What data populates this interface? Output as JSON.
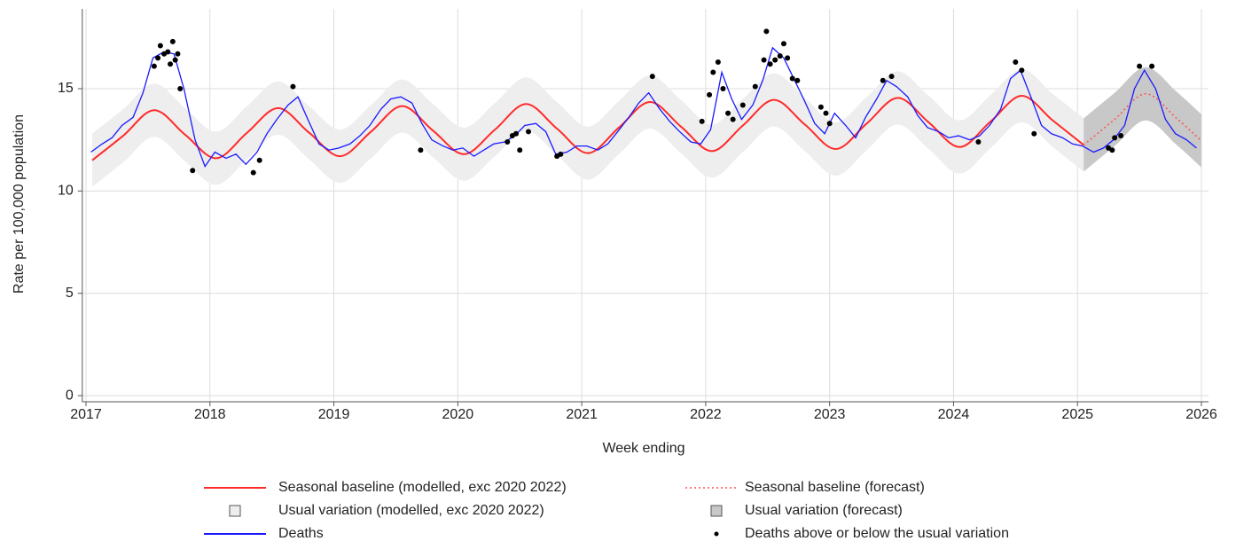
{
  "chart_data": {
    "type": "line",
    "x_label": "Week ending",
    "y_label": "Rate per 100,000 population",
    "xlim": [
      2016.97,
      2026.0
    ],
    "xticks": [
      2017,
      2018,
      2019,
      2020,
      2021,
      2022,
      2023,
      2024,
      2025,
      2026
    ],
    "ylim": [
      -0.3,
      18.9
    ],
    "yticks": [
      0,
      5,
      10,
      15
    ],
    "grid": true,
    "series": [
      {
        "name": "Seasonal baseline (modelled, exc 2020 2022)",
        "color": "#ff2a2a",
        "kind": "line",
        "x": [
          2017.05,
          2017.3,
          2017.55,
          2017.8,
          2018.05,
          2018.3,
          2018.55,
          2018.8,
          2019.05,
          2019.3,
          2019.55,
          2019.8,
          2020.05,
          2020.3,
          2020.55,
          2020.8,
          2021.05,
          2021.3,
          2021.55,
          2021.8,
          2022.05,
          2022.3,
          2022.55,
          2022.8,
          2023.05,
          2023.3,
          2023.55,
          2023.8,
          2024.05,
          2024.3,
          2024.55,
          2024.8,
          2025.05
        ],
        "values": [
          11.5,
          12.7,
          13.95,
          12.75,
          11.6,
          12.85,
          14.05,
          12.85,
          11.7,
          12.9,
          14.15,
          12.95,
          11.8,
          13.0,
          14.25,
          13.05,
          11.85,
          13.1,
          14.35,
          13.15,
          11.95,
          13.2,
          14.45,
          13.25,
          12.05,
          13.3,
          14.55,
          13.35,
          12.15,
          13.4,
          14.65,
          13.45,
          12.25
        ]
      },
      {
        "name": "Seasonal baseline (forecast)",
        "color": "#ff5050",
        "kind": "dotted",
        "x": [
          2025.05,
          2025.3,
          2025.55,
          2025.8,
          2026.0
        ],
        "values": [
          12.25,
          13.5,
          14.75,
          13.55,
          12.45
        ]
      },
      {
        "name": "Usual variation (modelled, exc 2020 2022)",
        "color": "#eeeeee",
        "kind": "band",
        "x": [
          2017.05,
          2017.3,
          2017.55,
          2017.8,
          2018.05,
          2018.3,
          2018.55,
          2018.8,
          2019.05,
          2019.3,
          2019.55,
          2019.8,
          2020.05,
          2020.3,
          2020.55,
          2020.8,
          2021.05,
          2021.3,
          2021.55,
          2021.8,
          2022.05,
          2022.3,
          2022.55,
          2022.8,
          2023.05,
          2023.3,
          2023.55,
          2023.8,
          2024.05,
          2024.3,
          2024.55,
          2024.8,
          2025.05
        ],
        "lower": [
          10.2,
          11.4,
          12.65,
          11.45,
          10.3,
          11.55,
          12.75,
          11.55,
          10.4,
          11.6,
          12.85,
          11.65,
          10.5,
          11.7,
          12.95,
          11.75,
          10.55,
          11.8,
          13.05,
          11.85,
          10.65,
          11.9,
          13.15,
          11.95,
          10.75,
          12.0,
          13.25,
          12.05,
          10.85,
          12.1,
          13.35,
          12.15,
          10.95
        ],
        "upper": [
          12.8,
          14.0,
          15.25,
          14.05,
          12.9,
          14.15,
          15.35,
          14.15,
          13.0,
          14.2,
          15.45,
          14.25,
          13.1,
          14.3,
          15.55,
          14.35,
          13.15,
          14.4,
          15.65,
          14.45,
          13.25,
          14.5,
          15.75,
          14.55,
          13.35,
          14.6,
          15.85,
          14.65,
          13.45,
          14.7,
          15.95,
          14.75,
          13.55
        ]
      },
      {
        "name": "Usual variation (forecast)",
        "color": "#c8c8c8",
        "kind": "band",
        "x": [
          2025.05,
          2025.3,
          2025.55,
          2025.8,
          2026.0
        ],
        "lower": [
          10.95,
          12.2,
          13.45,
          12.25,
          11.15
        ],
        "upper": [
          13.55,
          14.8,
          16.05,
          14.85,
          13.75
        ]
      },
      {
        "name": "Deaths",
        "color": "#1a1aff",
        "kind": "line",
        "x": [
          2017.04,
          2017.13,
          2017.21,
          2017.29,
          2017.38,
          2017.46,
          2017.54,
          2017.63,
          2017.71,
          2017.79,
          2017.88,
          2017.96,
          2018.04,
          2018.13,
          2018.21,
          2018.29,
          2018.38,
          2018.46,
          2018.54,
          2018.63,
          2018.71,
          2018.79,
          2018.88,
          2018.96,
          2019.04,
          2019.13,
          2019.21,
          2019.29,
          2019.38,
          2019.46,
          2019.54,
          2019.63,
          2019.71,
          2019.79,
          2019.88,
          2019.96,
          2020.04,
          2020.13,
          2020.21,
          2020.29,
          2020.38,
          2020.46,
          2020.54,
          2020.63,
          2020.71,
          2020.79,
          2020.88,
          2020.96,
          2021.04,
          2021.13,
          2021.21,
          2021.29,
          2021.38,
          2021.46,
          2021.54,
          2021.63,
          2021.71,
          2021.79,
          2021.88,
          2021.96,
          2022.04,
          2022.13,
          2022.21,
          2022.29,
          2022.38,
          2022.46,
          2022.54,
          2022.63,
          2022.71,
          2022.79,
          2022.88,
          2022.96,
          2023.04,
          2023.13,
          2023.21,
          2023.29,
          2023.38,
          2023.46,
          2023.54,
          2023.63,
          2023.71,
          2023.79,
          2023.88,
          2023.96,
          2024.04,
          2024.13,
          2024.21,
          2024.29,
          2024.38,
          2024.46,
          2024.54,
          2024.63,
          2024.71,
          2024.79,
          2024.88,
          2024.96,
          2025.04,
          2025.13,
          2025.21,
          2025.29,
          2025.38,
          2025.46,
          2025.54,
          2025.63,
          2025.71,
          2025.79,
          2025.88,
          2025.96
        ],
        "values": [
          11.9,
          12.3,
          12.6,
          13.2,
          13.6,
          14.8,
          16.5,
          16.8,
          16.7,
          15.0,
          12.5,
          11.2,
          11.9,
          11.6,
          11.8,
          11.3,
          11.9,
          12.8,
          13.5,
          14.2,
          14.6,
          13.5,
          12.3,
          12.0,
          12.1,
          12.3,
          12.7,
          13.2,
          14.0,
          14.5,
          14.6,
          14.3,
          13.3,
          12.5,
          12.2,
          12.0,
          12.1,
          11.7,
          12.0,
          12.3,
          12.4,
          12.7,
          13.2,
          13.3,
          12.9,
          11.8,
          11.9,
          12.2,
          12.2,
          12.0,
          12.3,
          12.9,
          13.6,
          14.3,
          14.8,
          14.0,
          13.4,
          12.9,
          12.4,
          12.3,
          13.0,
          15.8,
          14.5,
          13.5,
          14.2,
          15.4,
          17.0,
          16.5,
          15.5,
          14.5,
          13.3,
          12.8,
          13.8,
          13.2,
          12.6,
          13.6,
          14.5,
          15.4,
          15.1,
          14.6,
          13.7,
          13.1,
          12.9,
          12.6,
          12.7,
          12.5,
          12.7,
          13.2,
          14.0,
          15.5,
          15.9,
          14.5,
          13.2,
          12.8,
          12.6,
          12.3,
          12.2,
          11.9,
          12.1,
          12.5,
          13.2,
          15.0,
          15.9,
          15.0,
          13.5,
          12.8,
          12.5,
          12.1
        ]
      },
      {
        "name": "Deaths above or below the usual variation",
        "color": "#000000",
        "kind": "dots",
        "x": [
          2017.55,
          2017.58,
          2017.6,
          2017.63,
          2017.66,
          2017.68,
          2017.7,
          2017.72,
          2017.74,
          2017.76,
          2017.86,
          2018.35,
          2018.4,
          2018.67,
          2019.7,
          2020.4,
          2020.44,
          2020.47,
          2020.5,
          2020.57,
          2020.8,
          2020.83,
          2021.57,
          2021.97,
          2022.03,
          2022.06,
          2022.1,
          2022.14,
          2022.18,
          2022.22,
          2022.3,
          2022.4,
          2022.47,
          2022.49,
          2022.52,
          2022.56,
          2022.6,
          2022.63,
          2022.66,
          2022.7,
          2022.74,
          2022.93,
          2022.97,
          2023.0,
          2023.43,
          2023.5,
          2024.2,
          2024.5,
          2024.55,
          2024.65,
          2025.25,
          2025.28,
          2025.3,
          2025.35,
          2025.5,
          2025.6
        ],
        "values": [
          16.1,
          16.5,
          17.1,
          16.7,
          16.8,
          16.2,
          17.3,
          16.4,
          16.7,
          15.0,
          11.0,
          10.9,
          11.5,
          15.1,
          12.0,
          12.4,
          12.7,
          12.8,
          12.0,
          12.9,
          11.7,
          11.8,
          15.6,
          13.4,
          14.7,
          15.8,
          16.3,
          15.0,
          13.8,
          13.5,
          14.2,
          15.1,
          16.4,
          17.8,
          16.2,
          16.4,
          16.6,
          17.2,
          16.5,
          15.5,
          15.4,
          14.1,
          13.8,
          13.3,
          15.4,
          15.6,
          12.4,
          16.3,
          15.9,
          12.8,
          12.1,
          12.0,
          12.6,
          12.7,
          16.1,
          16.1
        ]
      }
    ]
  }
}
